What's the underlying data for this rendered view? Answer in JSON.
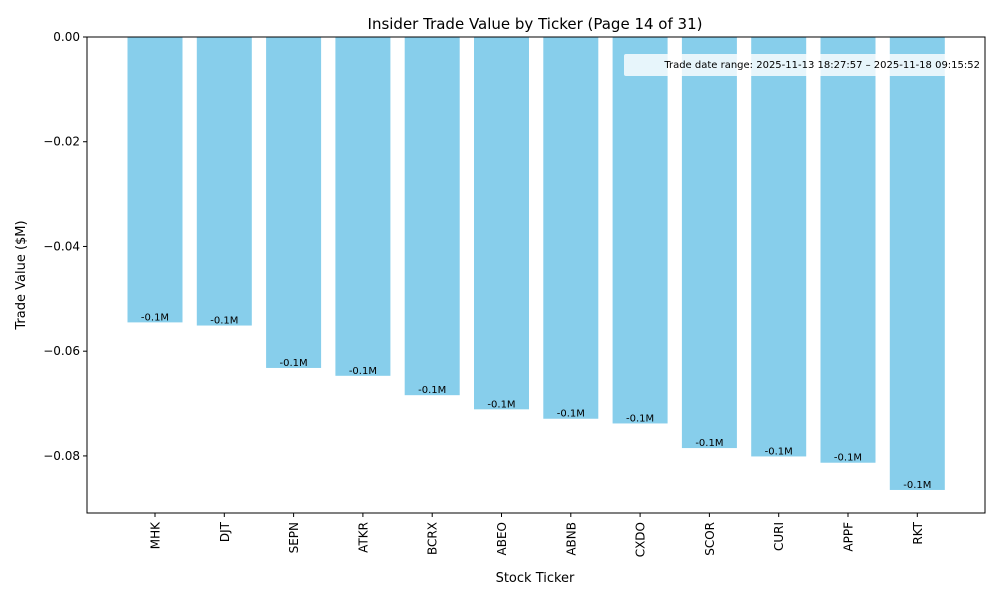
{
  "chart_data": {
    "type": "bar",
    "title": "Insider Trade Value by Ticker (Page 14 of 31)",
    "xlabel": "Stock Ticker",
    "ylabel": "Trade Value ($M)",
    "categories": [
      "MHK",
      "DJT",
      "SEPN",
      "ATKR",
      "BCRX",
      "ABEO",
      "ABNB",
      "CXDO",
      "SCOR",
      "CURI",
      "APPF",
      "RKT"
    ],
    "values": [
      -0.0545,
      -0.0551,
      -0.0632,
      -0.0647,
      -0.0684,
      -0.0711,
      -0.0729,
      -0.0738,
      -0.0785,
      -0.0801,
      -0.0813,
      -0.0865
    ],
    "data_labels": [
      "-0.1M",
      "-0.1M",
      "-0.1M",
      "-0.1M",
      "-0.1M",
      "-0.1M",
      "-0.1M",
      "-0.1M",
      "-0.1M",
      "-0.1M",
      "-0.1M",
      "-0.1M"
    ],
    "ylim": [
      -0.0909,
      0.0
    ],
    "yticks": [
      0.0,
      -0.02,
      -0.04,
      -0.06,
      -0.08
    ],
    "ytick_labels": [
      "0.00",
      "−0.02",
      "−0.04",
      "−0.06",
      "−0.08"
    ],
    "annotation": "Trade date range: 2025-11-13 18:27:57 – 2025-11-18 09:15:52",
    "annotation_position": "top-right",
    "bar_color": "#87CEEB",
    "grid": false
  }
}
